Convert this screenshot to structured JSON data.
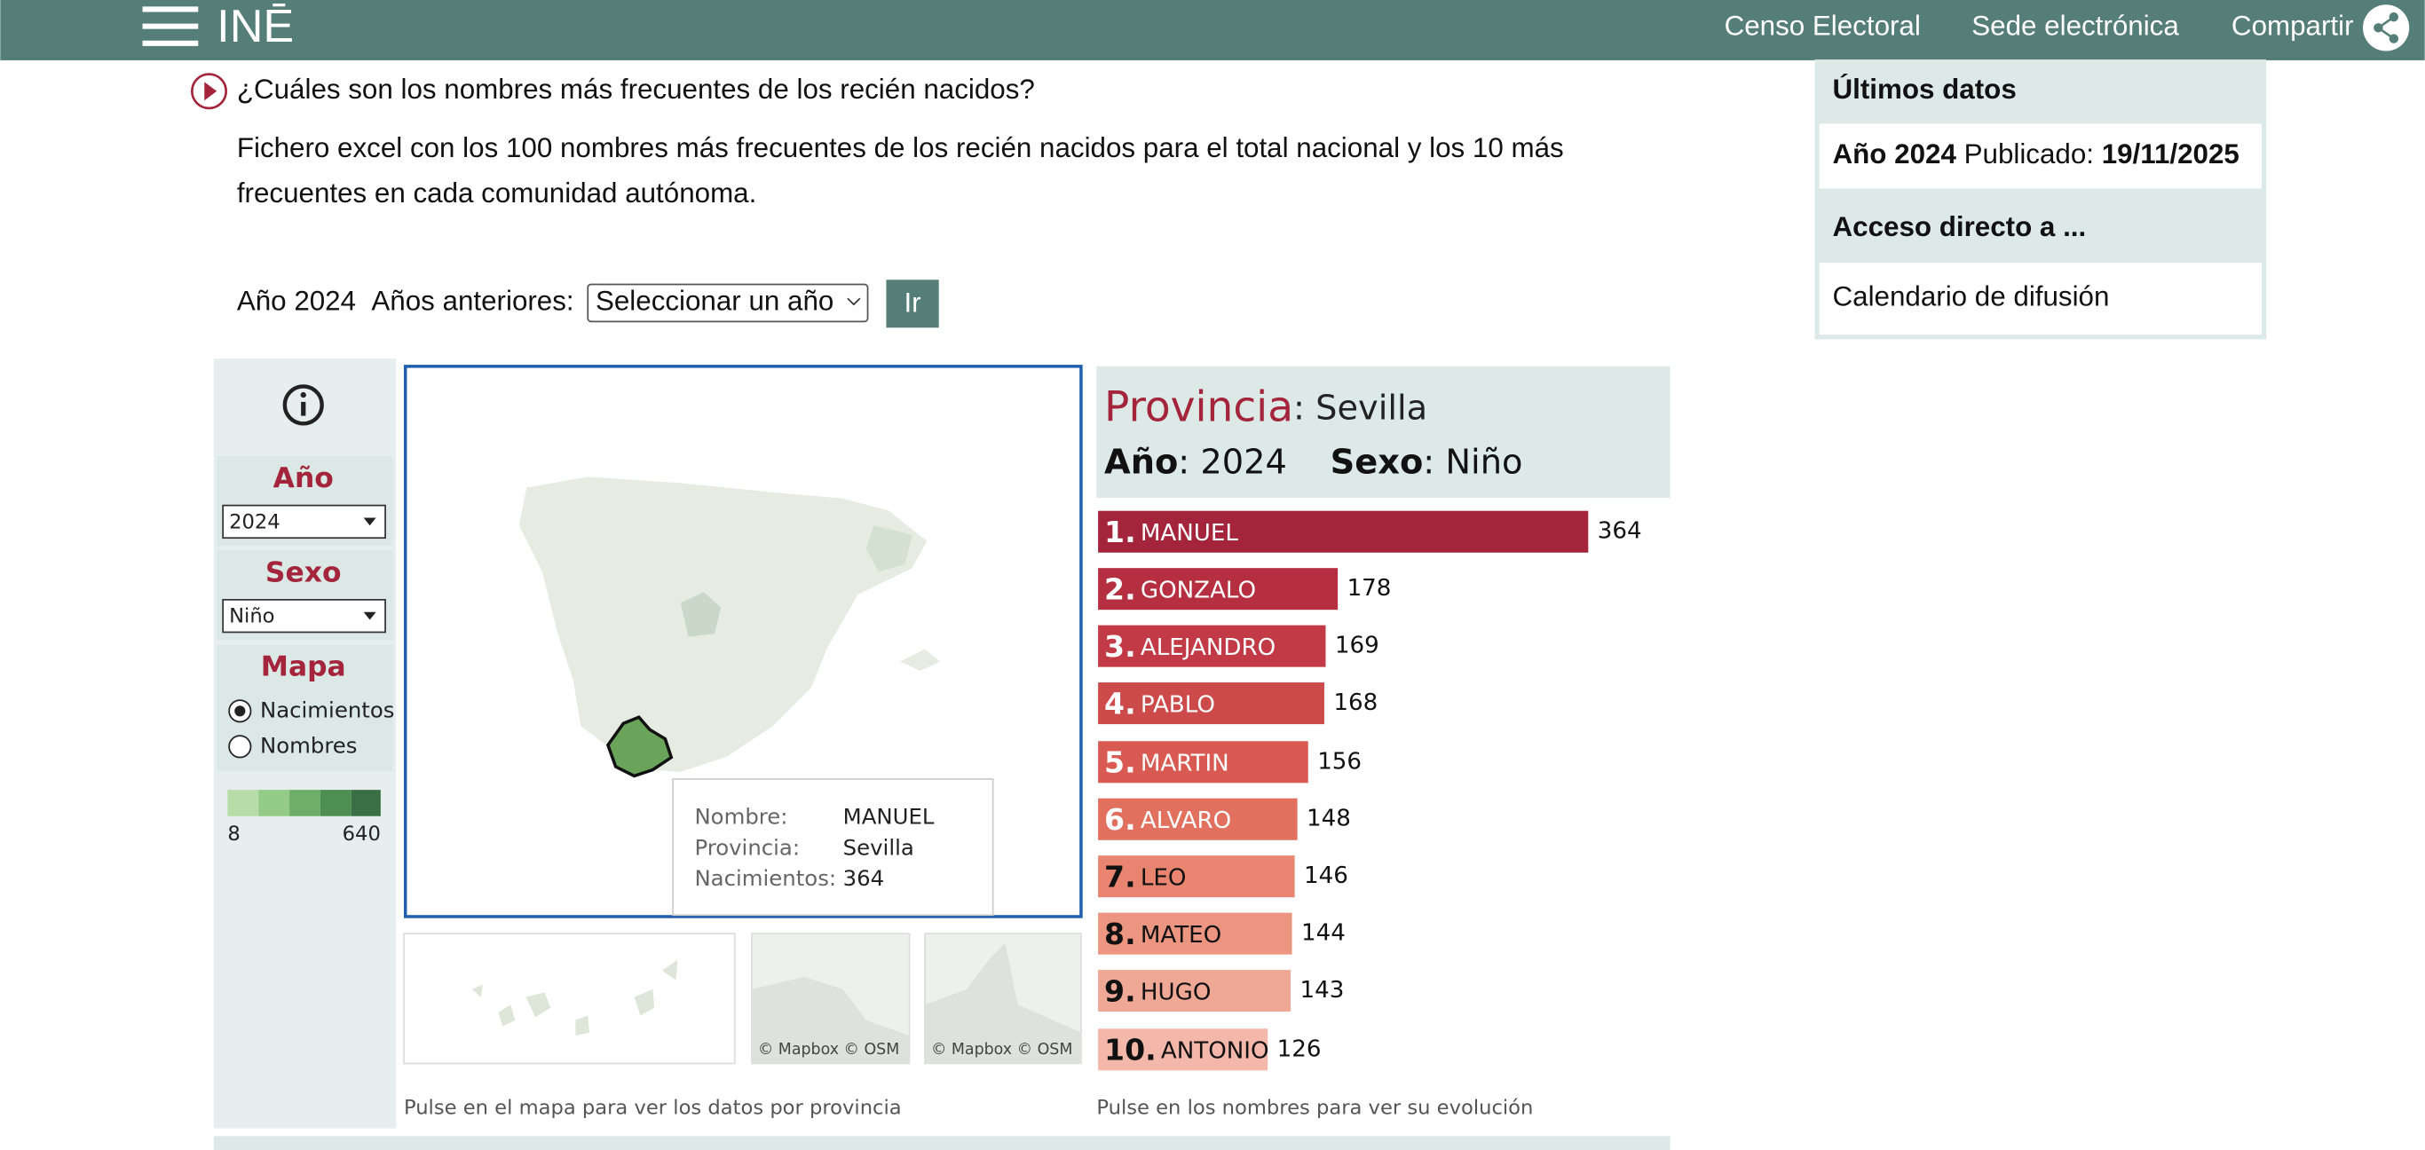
{
  "header": {
    "logo": "INĒ",
    "links": [
      "Censo Electoral",
      "Sede electrónica",
      "Compartir"
    ]
  },
  "question": "¿Cuáles son los nombres más frecuentes de los recién nacidos?",
  "description": [
    "Fichero excel con los 100 nombres más frecuentes de los recién nacidos para el total nacional y los 10 más",
    "frecuentes en cada comunidad autónoma."
  ],
  "year_selector": {
    "current": "Año 2024",
    "previous_label": "Años anteriores:",
    "select": "Seleccionar un año",
    "button": "Ir"
  },
  "side_panel": {
    "latest_title": "Últimos datos",
    "latest_year": "Año 2024",
    "published_label": "Publicado:",
    "published_date": "19/11/2025",
    "access_title": "Acceso directo a ...",
    "access_link": "Calendario de difusión"
  },
  "filters": {
    "year_label": "Año",
    "year_value": "2024",
    "sex_label": "Sexo",
    "sex_value": "Niño",
    "map_label": "Mapa",
    "map_options": [
      "Nacimientos",
      "Nombres"
    ],
    "legend_min": "8",
    "legend_max": "640"
  },
  "map": {
    "tooltip": [
      [
        "Nombre:",
        "MANUEL"
      ],
      [
        "Provincia:",
        "Sevilla"
      ],
      [
        "Nacimientos:",
        "364"
      ]
    ],
    "attribution": [
      "© Mapbox  © OSM",
      "© Mapbox  © OSM"
    ],
    "note": "Pulse en el mapa para ver los datos por provincia"
  },
  "chart_header": {
    "province_label": "Provincia",
    "province_value": ": Sevilla",
    "year_label": "Año",
    "year_value": ": 2024",
    "sex_label": "Sexo",
    "sex_value": ": Niño"
  },
  "chart_note": "Pulse en los nombres para ver su evolución",
  "chart_data": {
    "type": "bar",
    "orientation": "horizontal",
    "ranks": [
      "1.",
      "2.",
      "3.",
      "4.",
      "5.",
      "6.",
      "7.",
      "8.",
      "9.",
      "10."
    ],
    "categories": [
      "MANUEL",
      "GONZALO",
      "ALEJANDRO",
      "PABLO",
      "MARTIN",
      "ALVARO",
      "LEO",
      "MATEO",
      "HUGO",
      "ANTONIO"
    ],
    "values": [
      364,
      178,
      169,
      168,
      156,
      148,
      146,
      144,
      143,
      126
    ],
    "colors": [
      "#a4243b",
      "#b52f40",
      "#c13a45",
      "#cd4a4b",
      "#d95a52",
      "#e2705f",
      "#e8846f",
      "#ec9581",
      "#f0a896",
      "#f3b8a9"
    ]
  }
}
